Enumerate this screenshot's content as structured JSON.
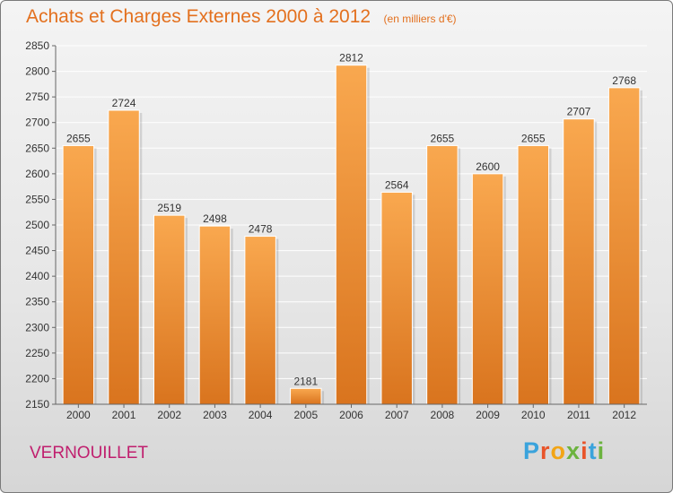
{
  "header": {
    "title": "Achats et Charges Externes 2000 à 2012",
    "unit_note": "(en milliers d'€)"
  },
  "commune": "VERNOUILLET",
  "logo": {
    "letters": [
      "P",
      "r",
      "o",
      "x",
      "i",
      "t",
      "i"
    ],
    "colors": [
      "#3aa3dc",
      "#e8542a",
      "#f2a516",
      "#6cb33f",
      "#e8542a",
      "#3aa3dc",
      "#6cb33f"
    ]
  },
  "colors": {
    "title": "#e3701e",
    "commune": "#c01f6e",
    "bar_light": "#f9a84f",
    "bar_dark": "#d9741e",
    "grid": "#ffffff",
    "axis": "#666666"
  },
  "chart_data": {
    "type": "bar",
    "title": "Achats et Charges Externes 2000 à 2012",
    "subtitle": "(en milliers d'€)",
    "categories": [
      "2000",
      "2001",
      "2002",
      "2003",
      "2004",
      "2005",
      "2006",
      "2007",
      "2008",
      "2009",
      "2010",
      "2011",
      "2012"
    ],
    "values": [
      2655,
      2724,
      2519,
      2498,
      2478,
      2181,
      2812,
      2564,
      2655,
      2600,
      2655,
      2707,
      2768
    ],
    "ylim": [
      2150,
      2850
    ],
    "yticks": [
      2150,
      2200,
      2250,
      2300,
      2350,
      2400,
      2450,
      2500,
      2550,
      2600,
      2650,
      2700,
      2750,
      2800,
      2850
    ],
    "grid": true,
    "xlabel": "",
    "ylabel": ""
  }
}
